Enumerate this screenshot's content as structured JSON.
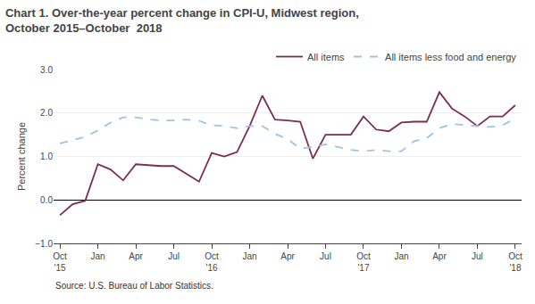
{
  "chart_data": {
    "type": "line",
    "title": "Chart 1. Over-the-year percent change in CPI-U, Midwest region,\nOctober 2015–October  2018",
    "ylabel": "Percent change",
    "annotations": [
      "Source: U.S. Bureau of Labor Statistics."
    ],
    "categories": [
      "Oct\n'15",
      null,
      null,
      "Jan",
      null,
      null,
      "Apr",
      null,
      null,
      "Jul",
      null,
      null,
      "Oct\n'16",
      null,
      null,
      "Jan",
      null,
      null,
      "Apr",
      null,
      null,
      "Jul",
      null,
      null,
      "Oct\n'17",
      null,
      null,
      "Jan",
      null,
      null,
      "Apr",
      null,
      null,
      "Jul",
      null,
      null,
      "Oct\n'18"
    ],
    "series": [
      {
        "name": "All items",
        "color": "#7B2D52",
        "line_style": "solid",
        "values": [
          -0.35,
          -0.1,
          -0.02,
          0.82,
          0.7,
          0.45,
          0.82,
          0.8,
          0.78,
          0.78,
          0.6,
          0.42,
          1.08,
          1.0,
          1.1,
          1.7,
          2.4,
          1.85,
          1.83,
          1.8,
          0.95,
          1.5,
          1.5,
          1.5,
          1.92,
          1.62,
          1.58,
          1.78,
          1.8,
          1.8,
          2.48,
          2.1,
          1.92,
          1.7,
          1.92,
          1.92,
          2.18
        ]
      },
      {
        "name": "All items less food and energy",
        "color": "#9DC3E6",
        "line_style": "dashed",
        "values": [
          1.3,
          1.38,
          1.45,
          1.6,
          1.78,
          1.9,
          1.9,
          1.85,
          1.83,
          1.83,
          1.85,
          1.82,
          1.72,
          1.7,
          1.65,
          1.7,
          1.7,
          1.52,
          1.4,
          1.18,
          1.22,
          1.28,
          1.22,
          1.15,
          1.12,
          1.15,
          1.12,
          1.12,
          1.35,
          1.42,
          1.65,
          1.75,
          1.72,
          1.7,
          1.68,
          1.72,
          1.88
        ]
      }
    ],
    "ylim": [
      -1.0,
      3.0
    ],
    "yticks": [
      {
        "value": -1.0,
        "label": "−1.0"
      },
      {
        "value": 0.0,
        "label": "0.0"
      },
      {
        "value": 1.0,
        "label": "1.0"
      },
      {
        "value": 2.0,
        "label": "2.0"
      },
      {
        "value": 3.0,
        "label": "3.0"
      }
    ],
    "grid": true,
    "legend": "upper right"
  }
}
